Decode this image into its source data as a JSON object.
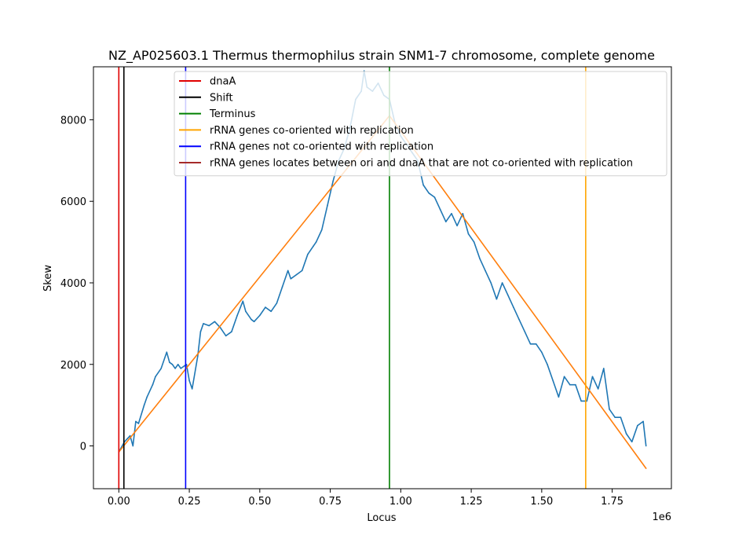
{
  "chart_data": {
    "type": "line",
    "title": "NZ_AP025603.1 Thermus thermophilus strain SNM1-7 chromosome, complete genome",
    "xlabel": "Locus",
    "ylabel": "Skew",
    "x_offset_label": "1e6",
    "xlim": [
      -0.09,
      1.96
    ],
    "ylim": [
      -1050,
      9300
    ],
    "x_ticks": [
      0.0,
      0.25,
      0.5,
      0.75,
      1.0,
      1.25,
      1.5,
      1.75
    ],
    "x_tick_labels": [
      "0.00",
      "0.25",
      "0.50",
      "0.75",
      "1.00",
      "1.25",
      "1.50",
      "1.75"
    ],
    "y_ticks": [
      0,
      2000,
      4000,
      6000,
      8000
    ],
    "y_tick_labels": [
      "0",
      "2000",
      "4000",
      "6000",
      "8000"
    ],
    "grid": false,
    "legend_position": "top",
    "series": [
      {
        "name": "",
        "color": "#1f77b4",
        "x": [
          0.0,
          0.02,
          0.04,
          0.05,
          0.06,
          0.07,
          0.09,
          0.1,
          0.12,
          0.13,
          0.15,
          0.17,
          0.18,
          0.19,
          0.2,
          0.21,
          0.22,
          0.24,
          0.25,
          0.26,
          0.28,
          0.29,
          0.3,
          0.32,
          0.34,
          0.36,
          0.38,
          0.4,
          0.42,
          0.44,
          0.45,
          0.47,
          0.48,
          0.5,
          0.52,
          0.54,
          0.56,
          0.58,
          0.6,
          0.61,
          0.63,
          0.65,
          0.67,
          0.69,
          0.7,
          0.72,
          0.74,
          0.76,
          0.78,
          0.8,
          0.82,
          0.84,
          0.86,
          0.87,
          0.88,
          0.9,
          0.92,
          0.94,
          0.96,
          0.98,
          1.0,
          1.02,
          1.04,
          1.06,
          1.08,
          1.1,
          1.12,
          1.14,
          1.16,
          1.18,
          1.2,
          1.22,
          1.24,
          1.26,
          1.28,
          1.3,
          1.32,
          1.34,
          1.36,
          1.38,
          1.4,
          1.42,
          1.44,
          1.46,
          1.48,
          1.5,
          1.52,
          1.54,
          1.56,
          1.58,
          1.6,
          1.62,
          1.64,
          1.66,
          1.68,
          1.7,
          1.72,
          1.74,
          1.76,
          1.78,
          1.8,
          1.82,
          1.84,
          1.86,
          1.87
        ],
        "y": [
          -150,
          100,
          250,
          0,
          600,
          550,
          1000,
          1200,
          1500,
          1700,
          1900,
          2300,
          2050,
          2000,
          1900,
          2000,
          1900,
          2000,
          1600,
          1400,
          2200,
          2800,
          3000,
          2950,
          3050,
          2900,
          2700,
          2800,
          3200,
          3550,
          3300,
          3100,
          3050,
          3200,
          3400,
          3300,
          3500,
          3900,
          4300,
          4100,
          4200,
          4300,
          4700,
          4900,
          5000,
          5300,
          5900,
          6500,
          7000,
          7300,
          7800,
          8500,
          8700,
          9200,
          8800,
          8700,
          8900,
          8600,
          8500,
          7900,
          7600,
          7400,
          7200,
          7000,
          6400,
          6200,
          6100,
          5800,
          5500,
          5700,
          5400,
          5700,
          5200,
          5000,
          4600,
          4300,
          4000,
          3600,
          4000,
          3700,
          3400,
          3100,
          2800,
          2500,
          2500,
          2300,
          2000,
          1600,
          1200,
          1700,
          1500,
          1500,
          1100,
          1100,
          1700,
          1400,
          1900,
          900,
          700,
          700,
          300,
          100,
          500,
          600,
          0
        ]
      },
      {
        "name": "",
        "color": "#ff7f0e",
        "x": [
          0.0,
          0.96,
          1.87
        ],
        "y": [
          -150,
          8100,
          -550
        ]
      }
    ],
    "vlines": [
      {
        "x": 0.0,
        "color": "#e00000",
        "label": "dnaA"
      },
      {
        "x": 0.018,
        "color": "#000000",
        "label": "Shift"
      },
      {
        "x": 0.96,
        "color": "#008000",
        "label": "Terminus"
      },
      {
        "x": 1.656,
        "color": "#ffa500",
        "label": "rRNA genes co-oriented with replication"
      },
      {
        "x": 0.237,
        "color": "#0000ff",
        "label": "rRNA genes not co-oriented with replication"
      }
    ],
    "legend": [
      {
        "label": "dnaA",
        "color": "#e00000"
      },
      {
        "label": "Shift",
        "color": "#000000"
      },
      {
        "label": "Terminus",
        "color": "#008000"
      },
      {
        "label": "rRNA genes co-oriented with replication",
        "color": "#ffa500"
      },
      {
        "label": "rRNA genes not co-oriented with replication",
        "color": "#0000ff"
      },
      {
        "label": "rRNA genes locates between ori and dnaA that are not co-oriented with replication",
        "color": "#a52a2a"
      }
    ]
  }
}
